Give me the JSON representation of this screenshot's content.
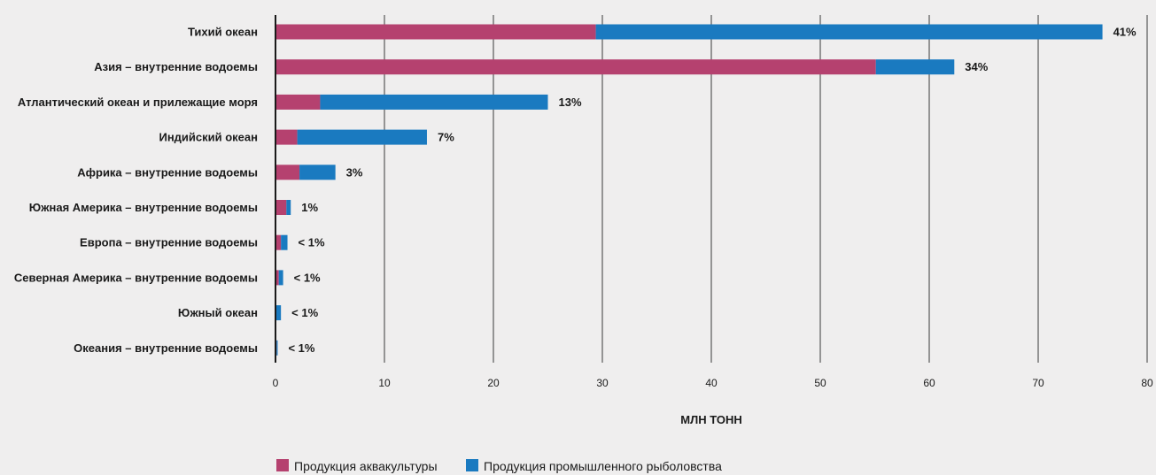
{
  "chart_data": {
    "type": "bar",
    "orientation": "horizontal",
    "stacked": true,
    "categories": [
      "Тихий океан",
      "Азия – внутренние водоемы",
      "Атлантический океан и прилежащие моря",
      "Индийский океан",
      "Африка – внутренние водоемы",
      "Южная Америка – внутренние водоемы",
      "Европа – внутренние водоемы",
      "Северная Америка – внутренние водоемы",
      "Южный океан",
      "Океания – внутренние водоемы"
    ],
    "series": [
      {
        "name": "Продукция аквакультуры",
        "color": "#b5416f",
        "values": [
          29.4,
          55.1,
          4.1,
          2.0,
          2.2,
          1.0,
          0.5,
          0.3,
          0.0,
          0.1
        ]
      },
      {
        "name": "Продукция промышленного рыболовства",
        "color": "#1a7ac0",
        "values": [
          46.5,
          7.2,
          20.9,
          11.9,
          3.3,
          0.4,
          0.6,
          0.4,
          0.5,
          0.1
        ]
      }
    ],
    "data_labels": [
      "41%",
      "34%",
      "13%",
      "7%",
      "3%",
      "1%",
      "< 1%",
      "< 1%",
      "< 1%",
      "< 1%"
    ],
    "xlabel": "МЛН ТОНН",
    "ylabel": "",
    "xlim": [
      0,
      80
    ],
    "xticks": [
      0,
      10,
      20,
      30,
      40,
      50,
      60,
      70,
      80
    ],
    "grid": true,
    "legend_position": "bottom"
  }
}
